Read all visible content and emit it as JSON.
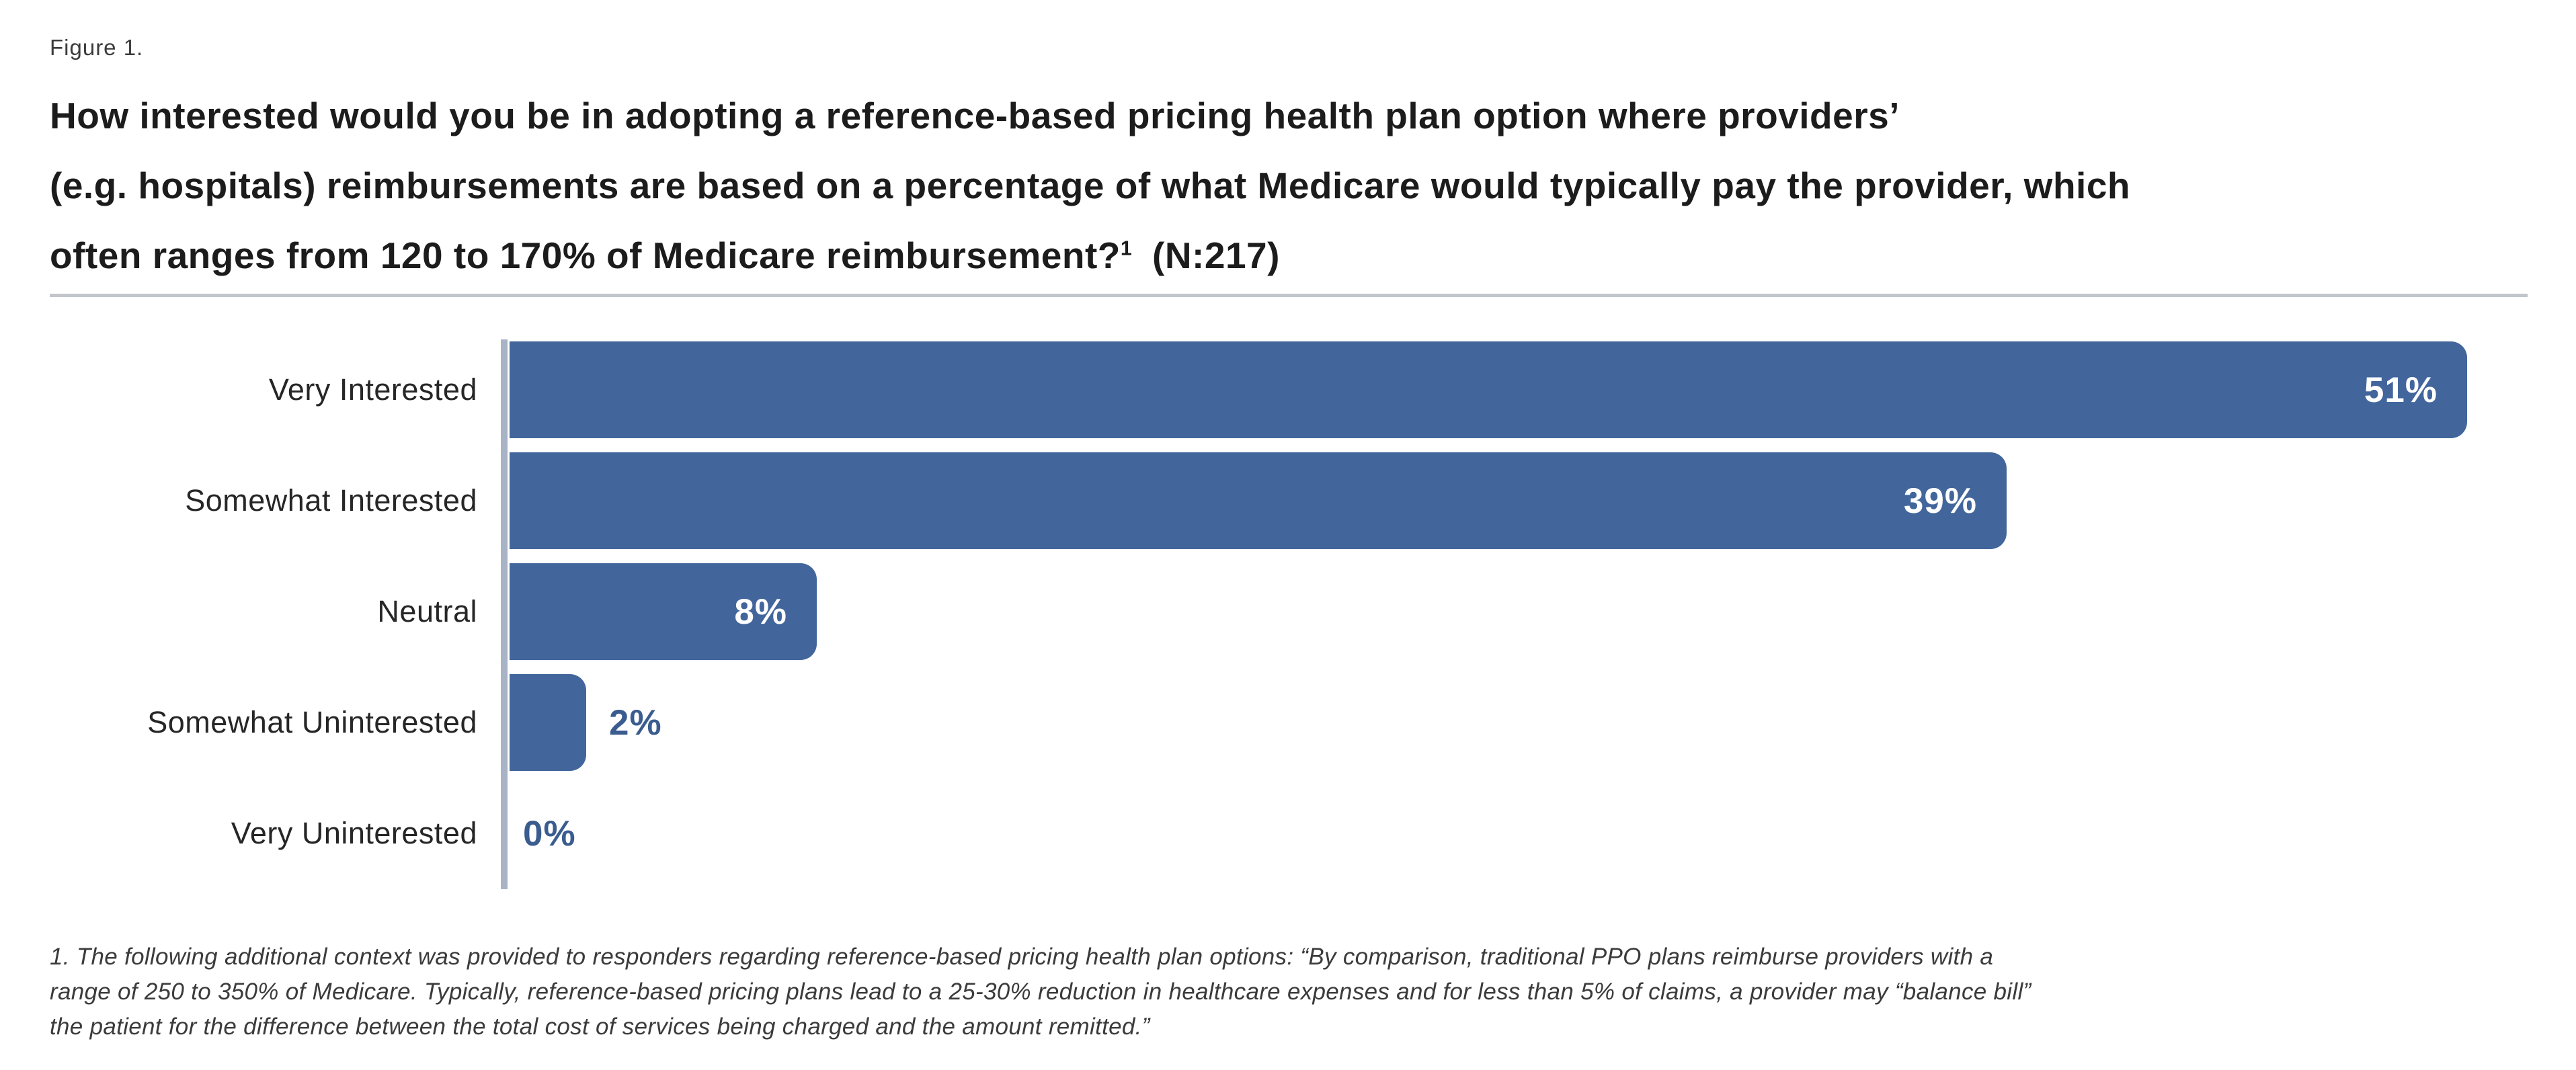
{
  "figure_label": "Figure 1.",
  "title": {
    "line1": "How interested would you be in adopting a reference-based pricing health plan option where providers’",
    "line2": "(e.g. hospitals) reimbursements are based on a percentage of what Medicare would typically pay the provider, which",
    "line3_pre": "often ranges from 120 to 170% of Medicare reimbursement?",
    "line3_sup": "1",
    "line3_post": " (N:217)"
  },
  "chart_data": {
    "type": "bar",
    "orientation": "horizontal",
    "title": "How interested would you be in adopting a reference-based pricing health plan option where providers’ (e.g. hospitals) reimbursements are based on a percentage of what Medicare would typically pay the provider, which often ranges from 120 to 170% of Medicare reimbursement?¹ (N:217)",
    "sample_size": 217,
    "categories": [
      "Very Interested",
      "Somewhat Interested",
      "Neutral",
      "Somewhat Uninterested",
      "Very Uninterested"
    ],
    "values": [
      51,
      39,
      8,
      2,
      0
    ],
    "value_labels": [
      "51%",
      "39%",
      "8%",
      "2%",
      "0%"
    ],
    "xlabel": "",
    "ylabel": "",
    "xlim": [
      0,
      51
    ],
    "grid": false,
    "legend": false,
    "bar_color": "#42669C",
    "value_label_inside_color": "#FFFFFF",
    "value_label_outside_color": "#3A5C8F",
    "axis_line_color": "#A9B3C6"
  },
  "footnote": {
    "lines": [
      "1. The following additional context was provided to responders regarding reference-based pricing health plan options: “By comparison, traditional PPO plans reimburse providers with a",
      "range of 250 to 350% of Medicare. Typically, reference-based pricing plans lead to a 25-30% reduction in healthcare expenses and for less than 5% of claims, a provider may “balance bill”",
      "the patient for the difference between the total cost of services being charged and the amount remitted.”"
    ]
  }
}
